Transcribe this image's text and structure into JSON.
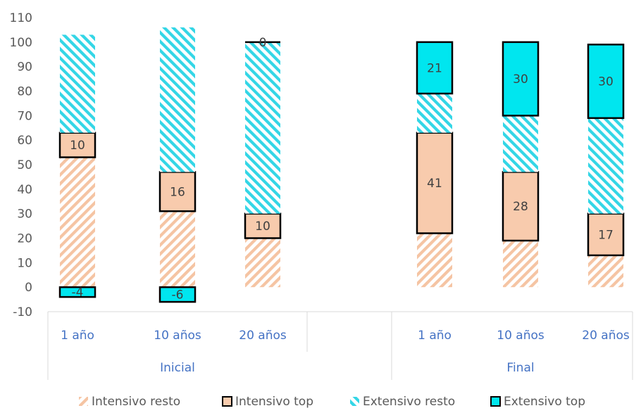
{
  "chart_data": {
    "type": "bar",
    "stacked": true,
    "ylim": [
      -10,
      110
    ],
    "yticks": [
      -10,
      0,
      10,
      20,
      30,
      40,
      50,
      60,
      70,
      80,
      90,
      100,
      110
    ],
    "groups": [
      {
        "name": "Inicial",
        "categories": [
          "1 año",
          "10 años",
          "20 años"
        ]
      },
      {
        "name": "Final",
        "categories": [
          "1 año",
          "10 años",
          "20 años"
        ]
      }
    ],
    "series": [
      {
        "name": "Intensivo resto",
        "color": "#f5c4a3",
        "pattern": "hatch-back",
        "values": [
          53,
          31,
          20,
          22,
          19,
          13
        ]
      },
      {
        "name": "Intensivo top",
        "color": "#f8cbad",
        "pattern": "solid-outlined",
        "values": [
          10,
          16,
          10,
          41,
          28,
          17
        ]
      },
      {
        "name": "Extensivo resto",
        "color": "#33d6e6",
        "pattern": "hatch-fwd",
        "values": [
          40,
          59,
          70,
          16,
          23,
          39
        ]
      },
      {
        "name": "Extensivo top",
        "color": "#00e6ef",
        "pattern": "solid-outlined",
        "values": [
          -4,
          -6,
          0,
          21,
          30,
          30
        ]
      }
    ],
    "data_labels": [
      {
        "series": "Intensivo top",
        "labels": [
          "10",
          "16",
          "10",
          "41",
          "28",
          "17"
        ]
      },
      {
        "series": "Extensivo top",
        "labels": [
          "-4",
          "-6",
          "0",
          "21",
          "30",
          "30"
        ]
      }
    ],
    "grid": false,
    "legend_position": "bottom"
  },
  "colors": {
    "axis_text": "#595959",
    "category_text": "#4472c4",
    "axis_line": "#d9d9d9",
    "outline": "#000000"
  }
}
